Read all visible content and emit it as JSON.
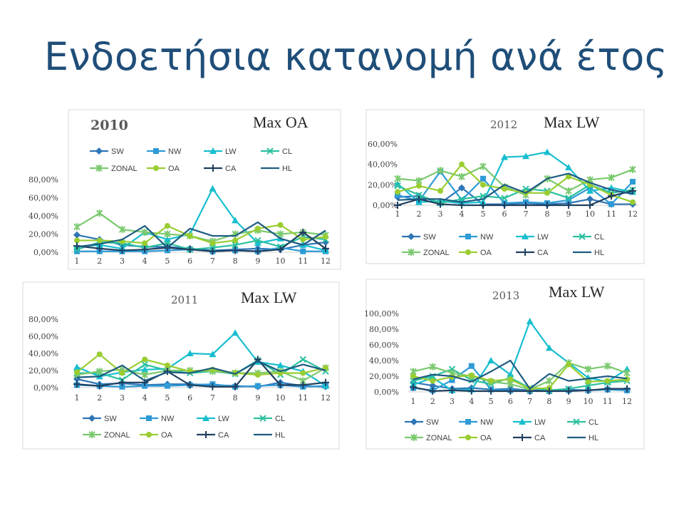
{
  "page_title": "Ενδοετήσια κατανομή ανά έτος",
  "colors": {
    "title": "#1F4E79",
    "SW": "#2E75B6",
    "NW": "#2E9BD6",
    "LW": "#17BECF",
    "CL": "#2CC0A0",
    "ZONAL": "#7BC96F",
    "OA": "#9ACD32",
    "CA": "#1F3F5F",
    "HL": "#1E5C82"
  },
  "chart_data": [
    {
      "id": "2010",
      "type": "line",
      "year": "2010",
      "annotation": "Max OA",
      "x": [
        "1",
        "2",
        "3",
        "4",
        "5",
        "6",
        "7",
        "8",
        "9",
        "10",
        "11",
        "12"
      ],
      "y_ticks": [
        "0,00%",
        "20,00%",
        "40,00%",
        "60,00%",
        "80,00%"
      ],
      "ylim": [
        0,
        80
      ],
      "legend_position": "top",
      "legend": [
        "SW",
        "NW",
        "LW",
        "CL",
        "ZONAL",
        "OA",
        "CA",
        "HL"
      ],
      "series": [
        {
          "name": "SW",
          "values": [
            19,
            14,
            8,
            6,
            6,
            4,
            2,
            3,
            4,
            3,
            8,
            11
          ]
        },
        {
          "name": "NW",
          "values": [
            1,
            1,
            1,
            1,
            2,
            3,
            1,
            2,
            1,
            5,
            1,
            1
          ]
        },
        {
          "name": "LW",
          "values": [
            6,
            8,
            4,
            22,
            14,
            20,
            70,
            35,
            10,
            15,
            8,
            2
          ]
        },
        {
          "name": "CL",
          "values": [
            3,
            11,
            10,
            5,
            10,
            3,
            5,
            8,
            13,
            6,
            17,
            14
          ]
        },
        {
          "name": "ZONAL",
          "values": [
            28,
            43,
            25,
            22,
            20,
            18,
            12,
            20,
            24,
            20,
            22,
            19
          ]
        },
        {
          "name": "OA",
          "values": [
            13,
            13,
            12,
            10,
            29,
            18,
            10,
            13,
            26,
            30,
            14,
            17
          ]
        },
        {
          "name": "CA",
          "values": [
            7,
            4,
            2,
            3,
            5,
            3,
            1,
            2,
            1,
            3,
            22,
            4
          ]
        },
        {
          "name": "HL",
          "values": [
            6,
            9,
            14,
            29,
            5,
            26,
            18,
            18,
            33,
            15,
            8,
            24
          ]
        }
      ]
    },
    {
      "id": "2012",
      "type": "line",
      "year": "2012",
      "annotation": "Max LW",
      "x": [
        "1",
        "2",
        "3",
        "4",
        "5",
        "6",
        "7",
        "8",
        "9",
        "10",
        "11",
        "12"
      ],
      "y_ticks": [
        "0,00%",
        "20,00%",
        "40,00%",
        "60,00%"
      ],
      "ylim": [
        0,
        60
      ],
      "legend_position": "bottom",
      "legend": [
        "SW",
        "NW",
        "LW",
        "CL",
        "ZONAL",
        "OA",
        "CA",
        "HL"
      ],
      "series": [
        {
          "name": "SW",
          "values": [
            8,
            9,
            2,
            17,
            1,
            1,
            2,
            1,
            2,
            6,
            1,
            1
          ]
        },
        {
          "name": "NW",
          "values": [
            10,
            4,
            33,
            5,
            26,
            2,
            3,
            2,
            5,
            17,
            1,
            23
          ]
        },
        {
          "name": "LW",
          "values": [
            21,
            3,
            4,
            2,
            3,
            47,
            48,
            52,
            37,
            14,
            17,
            13
          ]
        },
        {
          "name": "CL",
          "values": [
            19,
            10,
            2,
            6,
            9,
            7,
            16,
            14,
            7,
            20,
            12,
            15
          ]
        },
        {
          "name": "ZONAL",
          "values": [
            26,
            24,
            34,
            28,
            38,
            18,
            10,
            26,
            14,
            25,
            27,
            35
          ]
        },
        {
          "name": "OA",
          "values": [
            13,
            19,
            14,
            40,
            20,
            16,
            12,
            12,
            28,
            20,
            10,
            3
          ]
        },
        {
          "name": "CA",
          "values": [
            0,
            6,
            1,
            0,
            0,
            0,
            0,
            0,
            0,
            0,
            9,
            14
          ]
        },
        {
          "name": "HL",
          "values": [
            5,
            6,
            6,
            3,
            6,
            20,
            12,
            26,
            31,
            22,
            15,
            11
          ]
        }
      ]
    },
    {
      "id": "2011",
      "type": "line",
      "year": "2011",
      "annotation": "Max LW",
      "x": [
        "1",
        "2",
        "3",
        "4",
        "5",
        "6",
        "7",
        "8",
        "9",
        "10",
        "11",
        "12"
      ],
      "y_ticks": [
        "0,00%",
        "20,00%",
        "40,00%",
        "60,00%",
        "80,00%"
      ],
      "ylim": [
        0,
        80
      ],
      "legend_position": "bottom",
      "legend": [
        "SW",
        "NW",
        "LW",
        "CL",
        "ZONAL",
        "OA",
        "CA",
        "HL"
      ],
      "series": [
        {
          "name": "SW",
          "values": [
            10,
            4,
            5,
            3,
            4,
            4,
            3,
            2,
            1,
            6,
            2,
            1
          ]
        },
        {
          "name": "NW",
          "values": [
            3,
            2,
            1,
            2,
            2,
            3,
            4,
            1,
            2,
            3,
            1,
            2
          ]
        },
        {
          "name": "LW",
          "values": [
            24,
            13,
            18,
            21,
            22,
            40,
            39,
            64,
            30,
            26,
            19,
            2
          ]
        },
        {
          "name": "CL",
          "values": [
            17,
            17,
            9,
            27,
            20,
            17,
            19,
            16,
            32,
            15,
            33,
            19
          ]
        },
        {
          "name": "ZONAL",
          "values": [
            15,
            19,
            21,
            15,
            20,
            20,
            19,
            17,
            17,
            19,
            8,
            23
          ]
        },
        {
          "name": "OA",
          "values": [
            18,
            39,
            17,
            33,
            26,
            19,
            21,
            17,
            15,
            17,
            17,
            23
          ]
        },
        {
          "name": "CA",
          "values": [
            4,
            2,
            6,
            6,
            19,
            3,
            1,
            1,
            33,
            3,
            3,
            6
          ]
        },
        {
          "name": "HL",
          "values": [
            12,
            13,
            26,
            8,
            18,
            17,
            23,
            16,
            31,
            19,
            27,
            20
          ]
        }
      ]
    },
    {
      "id": "2013",
      "type": "line",
      "year": "2013",
      "annotation": "Max LW",
      "x": [
        "1",
        "2",
        "3",
        "4",
        "5",
        "6",
        "7",
        "8",
        "9",
        "10",
        "11",
        "12"
      ],
      "y_ticks": [
        "0,00%",
        "20,00%",
        "40,00%",
        "60,00%",
        "80,00%",
        "100,00%"
      ],
      "ylim": [
        0,
        100
      ],
      "legend_position": "bottom",
      "legend": [
        "SW",
        "NW",
        "LW",
        "CL",
        "ZONAL",
        "OA",
        "CA",
        "HL"
      ],
      "series": [
        {
          "name": "SW",
          "values": [
            12,
            8,
            4,
            5,
            3,
            4,
            2,
            2,
            3,
            2,
            3,
            2
          ]
        },
        {
          "name": "NW",
          "values": [
            5,
            2,
            15,
            33,
            3,
            2,
            1,
            1,
            2,
            2,
            3,
            2
          ]
        },
        {
          "name": "LW",
          "values": [
            9,
            18,
            2,
            3,
            40,
            22,
            90,
            56,
            37,
            18,
            13,
            29
          ]
        },
        {
          "name": "CL",
          "values": [
            14,
            20,
            29,
            15,
            10,
            18,
            5,
            2,
            4,
            8,
            12,
            14
          ]
        },
        {
          "name": "ZONAL",
          "values": [
            26,
            32,
            24,
            20,
            13,
            10,
            3,
            14,
            37,
            29,
            33,
            24
          ]
        },
        {
          "name": "OA",
          "values": [
            20,
            14,
            19,
            21,
            14,
            16,
            4,
            5,
            35,
            13,
            14,
            16
          ]
        },
        {
          "name": "CA",
          "values": [
            6,
            1,
            2,
            1,
            1,
            1,
            1,
            1,
            1,
            2,
            4,
            4
          ]
        },
        {
          "name": "HL",
          "values": [
            16,
            22,
            20,
            13,
            26,
            40,
            4,
            23,
            14,
            17,
            20,
            17
          ]
        }
      ]
    }
  ]
}
